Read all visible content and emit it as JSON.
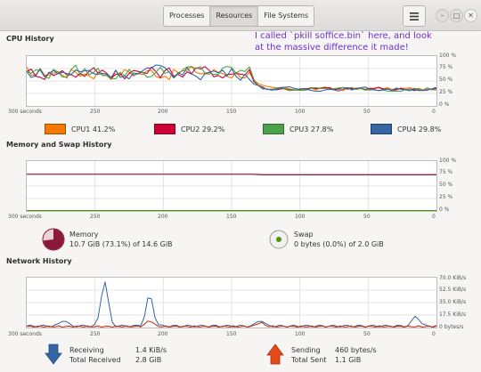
{
  "tabs": [
    "Processes",
    "Resources",
    "File Systems"
  ],
  "active_tab": 1,
  "window_controls": {
    "minimize": "–",
    "maximize": "□",
    "close": "✕"
  },
  "annotation": "I called `pkill soffice.bin` here, and look at the massive difference it made!",
  "cpu": {
    "title": "CPU History",
    "y_ticks": [
      "100 %",
      "75 %",
      "50 %",
      "25 %",
      "0 %"
    ],
    "x_ticks": [
      "300 seconds",
      "250",
      "200",
      "150",
      "100",
      "50",
      "0"
    ],
    "legend": [
      {
        "label": "CPU1",
        "value": "41.2%",
        "color": "#f57900"
      },
      {
        "label": "CPU2",
        "value": "29.2%",
        "color": "#cc0033"
      },
      {
        "label": "CPU3",
        "value": "27.8%",
        "color": "#4ca24c"
      },
      {
        "label": "CPU4",
        "value": "29.8%",
        "color": "#3465a4"
      }
    ]
  },
  "memory": {
    "title": "Memory and Swap History",
    "y_ticks": [
      "100 %",
      "75 %",
      "50 %",
      "25 %",
      "0 %"
    ],
    "x_ticks": [
      "300 seconds",
      "250",
      "200",
      "150",
      "100",
      "50",
      "0"
    ],
    "memory_label": "Memory",
    "memory_value": "10.7 GiB (73.1%) of 14.6 GiB",
    "memory_color": "#8b1a3a",
    "memory_fraction": 0.731,
    "swap_label": "Swap",
    "swap_value": "0 bytes (0.0%) of 2.0 GiB",
    "swap_color": "#4e9a06"
  },
  "network": {
    "title": "Network History",
    "y_ticks": [
      "70.0 KiB/s",
      "52.5 KiB/s",
      "35.0 KiB/s",
      "17.5 KiB/s",
      "0 bytes/s"
    ],
    "x_ticks": [
      "300 seconds",
      "250",
      "200",
      "150",
      "100",
      "50",
      "0"
    ],
    "receiving_label": "Receiving",
    "receiving_value": "1.4 KiB/s",
    "total_received_label": "Total Received",
    "total_received_value": "2.8 GiB",
    "sending_label": "Sending",
    "sending_value": "460 bytes/s",
    "total_sent_label": "Total Sent",
    "total_sent_value": "1.1 GiB",
    "receive_color": "#3465a4",
    "send_color": "#cc2200"
  }
}
